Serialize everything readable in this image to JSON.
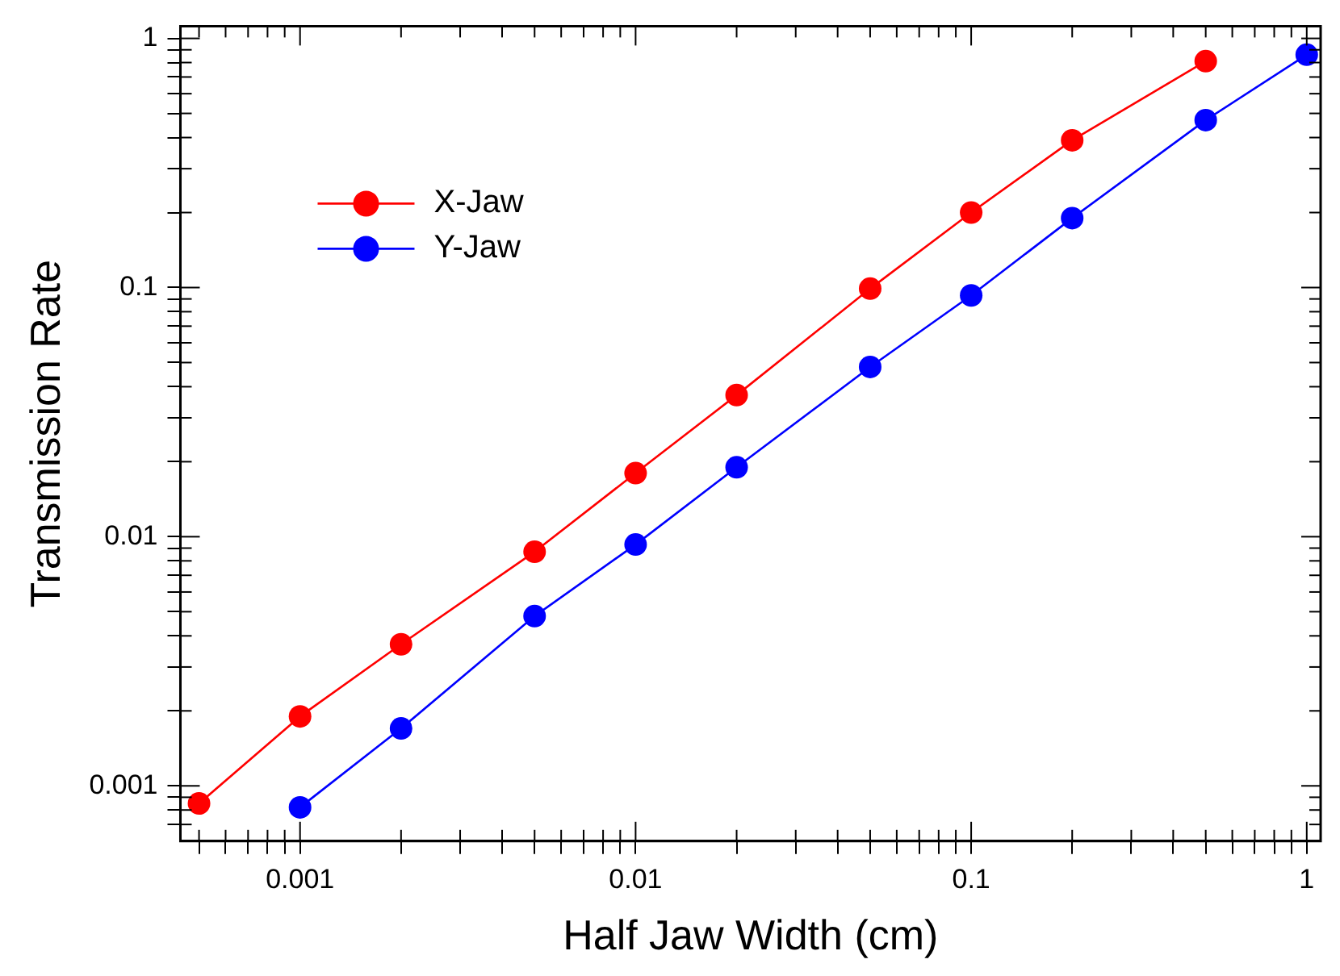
{
  "chart_data": {
    "type": "line",
    "xlabel": "Half Jaw Width (cm)",
    "ylabel": "Transmission Rate",
    "log": "xy",
    "grid": false,
    "legend": "top left",
    "marker": "circle",
    "line_style": "solid",
    "xlim": [
      0.00044,
      1.1
    ],
    "xticks": [
      {
        "value": 0.0005,
        "label": null
      },
      {
        "value": 0.0006,
        "label": null
      },
      {
        "value": 0.0007,
        "label": null
      },
      {
        "value": 0.0008,
        "label": null
      },
      {
        "value": 0.0009,
        "label": null
      },
      0.001,
      {
        "value": 0.002,
        "label": null
      },
      {
        "value": 0.003,
        "label": null
      },
      {
        "value": 0.004,
        "label": null
      },
      {
        "value": 0.005,
        "label": null
      },
      {
        "value": 0.006,
        "label": null
      },
      {
        "value": 0.007,
        "label": null
      },
      {
        "value": 0.008,
        "label": null
      },
      {
        "value": 0.009,
        "label": null
      },
      0.01,
      {
        "value": 0.02,
        "label": null
      },
      {
        "value": 0.03,
        "label": null
      },
      {
        "value": 0.04,
        "label": null
      },
      {
        "value": 0.05,
        "label": null
      },
      {
        "value": 0.06,
        "label": null
      },
      {
        "value": 0.07,
        "label": null
      },
      {
        "value": 0.08,
        "label": null
      },
      {
        "value": 0.09,
        "label": null
      },
      0.1,
      {
        "value": 0.2,
        "label": null
      },
      {
        "value": 0.3,
        "label": null
      },
      {
        "value": 0.4,
        "label": null
      },
      {
        "value": 0.5,
        "label": null
      },
      {
        "value": 0.6,
        "label": null
      },
      {
        "value": 0.7,
        "label": null
      },
      {
        "value": 0.8,
        "label": null
      },
      {
        "value": 0.9,
        "label": null
      },
      1
    ],
    "ylim": [
      0.00062,
      1.12
    ],
    "yticks": [
      {
        "value": 0.0007,
        "label": null
      },
      {
        "value": 0.0008,
        "label": null
      },
      {
        "value": 0.0009,
        "label": null
      },
      0.001,
      {
        "value": 0.002,
        "label": null
      },
      {
        "value": 0.003,
        "label": null
      },
      {
        "value": 0.004,
        "label": null
      },
      {
        "value": 0.005,
        "label": null
      },
      {
        "value": 0.006,
        "label": null
      },
      {
        "value": 0.007,
        "label": null
      },
      {
        "value": 0.008,
        "label": null
      },
      {
        "value": 0.009,
        "label": null
      },
      0.01,
      {
        "value": 0.02,
        "label": null
      },
      {
        "value": 0.03,
        "label": null
      },
      {
        "value": 0.04,
        "label": null
      },
      {
        "value": 0.05,
        "label": null
      },
      {
        "value": 0.06,
        "label": null
      },
      {
        "value": 0.07,
        "label": null
      },
      {
        "value": 0.08,
        "label": null
      },
      {
        "value": 0.09,
        "label": null
      },
      0.1,
      {
        "value": 0.2,
        "label": null
      },
      {
        "value": 0.3,
        "label": null
      },
      {
        "value": 0.4,
        "label": null
      },
      {
        "value": 0.5,
        "label": null
      },
      {
        "value": 0.6,
        "label": null
      },
      {
        "value": 0.7,
        "label": null
      },
      {
        "value": 0.8,
        "label": null
      },
      {
        "value": 0.9,
        "label": null
      },
      1
    ],
    "series": [
      {
        "name": "X-Jaw",
        "color": "#ff0000",
        "x": [
          0.0005,
          0.001,
          0.002,
          0.005,
          0.01,
          0.02,
          0.05,
          0.1,
          0.2,
          0.5
        ],
        "values": [
          0.00085,
          0.0019,
          0.0037,
          0.0087,
          0.018,
          0.037,
          0.099,
          0.2,
          0.39,
          0.81
        ]
      },
      {
        "name": "Y-Jaw",
        "color": "#0000ff",
        "x": [
          0.001,
          0.002,
          0.005,
          0.01,
          0.02,
          0.05,
          0.1,
          0.2,
          0.5,
          1
        ],
        "values": [
          0.00082,
          0.0017,
          0.0048,
          0.0093,
          0.019,
          0.048,
          0.093,
          0.19,
          0.47,
          0.86
        ]
      }
    ]
  }
}
